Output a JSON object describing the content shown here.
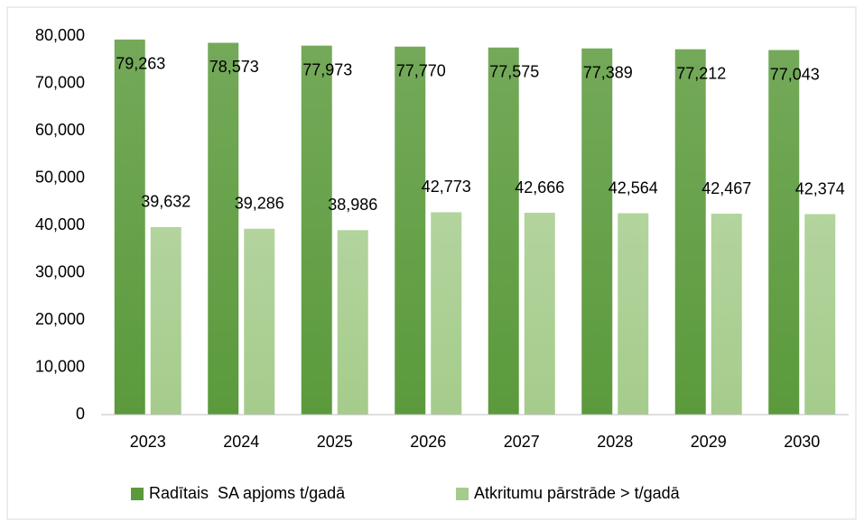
{
  "chart_data": {
    "type": "bar",
    "categories": [
      "2023",
      "2024",
      "2025",
      "2026",
      "2027",
      "2028",
      "2029",
      "2030"
    ],
    "series": [
      {
        "name": "Radītais  SA apjoms t/gadā",
        "color": "#5b9a3c",
        "values": [
          79263,
          78573,
          77973,
          77770,
          77575,
          77389,
          77212,
          77043
        ],
        "value_labels": [
          "79,263",
          "78,573",
          "77,973",
          "77,770",
          "77,575",
          "77,389",
          "77,212",
          "77,043"
        ]
      },
      {
        "name": "Atkritumu pārstrāde > t/gadā",
        "color": "#a5cc8c",
        "values": [
          39632,
          39286,
          38986,
          42773,
          42666,
          42564,
          42467,
          42374
        ],
        "value_labels": [
          "39,632",
          "39,286",
          "38,986",
          "42,773",
          "42,666",
          "42,564",
          "42,467",
          "42,374"
        ]
      }
    ],
    "ylim": [
      0,
      80000
    ],
    "yticks": [
      0,
      {
        "value": 10000,
        "label": "10,000"
      },
      {
        "value": 20000,
        "label": "20,000"
      },
      {
        "value": 30000,
        "label": "30,000"
      },
      {
        "value": 40000,
        "label": "40,000"
      },
      {
        "value": 50000,
        "label": "50,000"
      },
      {
        "value": 60000,
        "label": "60,000"
      },
      {
        "value": 70000,
        "label": "70,000"
      },
      {
        "value": 80000,
        "label": "80,000"
      }
    ],
    "grid": false,
    "legend": "bottom"
  }
}
